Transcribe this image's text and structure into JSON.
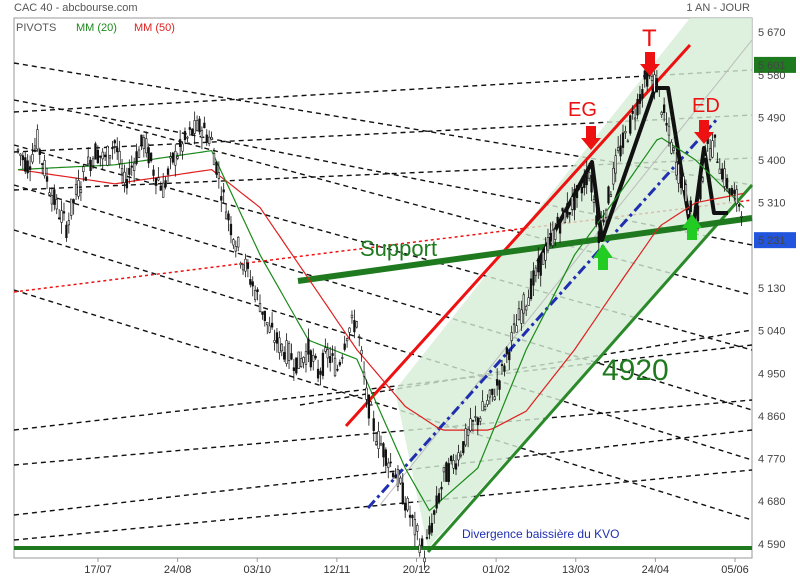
{
  "header": {
    "left": "CAC 40 - abcbourse.com",
    "right": "1 AN - JOUR"
  },
  "legend": {
    "pivots": "PIVOTS",
    "mm20": "MM (20)",
    "mm50": "MM (50)"
  },
  "colors": {
    "mm20": "#1a8a1a",
    "mm50": "#e02020",
    "support": "#1f7a1f",
    "channel_fill": "#d6ecd6",
    "resistance": "#ee1111",
    "dashdot": "#1f2fb0",
    "price_box_green": "#1e7a1e",
    "price_box_blue": "#2255dd"
  },
  "chart_data": {
    "type": "candlestick",
    "title": "CAC 40",
    "period": "1 AN - JOUR",
    "ylim": [
      4560,
      5700
    ],
    "yticks": [
      5670,
      5601,
      5580,
      5490,
      5400,
      5310,
      5231,
      5130,
      5040,
      4950,
      4860,
      4770,
      4680,
      4590
    ],
    "ytick_labels": [
      "5 670",
      "5 601",
      "5 580",
      "5 490",
      "5 400",
      "5 310",
      "5 231",
      "5 130",
      "5 040",
      "4 950",
      "4 860",
      "4 770",
      "4 680",
      "4 590"
    ],
    "highlighted_levels": [
      {
        "label": "5 601",
        "value": 5601,
        "style": "green-box"
      },
      {
        "label": "5 231",
        "value": 5231,
        "style": "blue-box"
      }
    ],
    "xtick_labels": [
      "17/07",
      "24/08",
      "03/10",
      "12/11",
      "20/12",
      "01/02",
      "13/03",
      "24/04",
      "05/06"
    ],
    "close_path": [
      [
        0,
        5420
      ],
      [
        4,
        5390
      ],
      [
        8,
        5440
      ],
      [
        12,
        5360
      ],
      [
        16,
        5300
      ],
      [
        20,
        5260
      ],
      [
        24,
        5330
      ],
      [
        28,
        5380
      ],
      [
        32,
        5420
      ],
      [
        36,
        5400
      ],
      [
        40,
        5440
      ],
      [
        44,
        5350
      ],
      [
        48,
        5400
      ],
      [
        52,
        5440
      ],
      [
        56,
        5380
      ],
      [
        60,
        5340
      ],
      [
        64,
        5400
      ],
      [
        68,
        5430
      ],
      [
        72,
        5460
      ],
      [
        76,
        5470
      ],
      [
        80,
        5440
      ],
      [
        84,
        5340
      ],
      [
        88,
        5260
      ],
      [
        92,
        5200
      ],
      [
        96,
        5150
      ],
      [
        100,
        5100
      ],
      [
        104,
        5040
      ],
      [
        108,
        5010
      ],
      [
        112,
        4990
      ],
      [
        116,
        4970
      ],
      [
        120,
        5000
      ],
      [
        124,
        4950
      ],
      [
        128,
        4990
      ],
      [
        132,
        4960
      ],
      [
        136,
        5040
      ],
      [
        140,
        5060
      ],
      [
        144,
        4900
      ],
      [
        148,
        4820
      ],
      [
        152,
        4780
      ],
      [
        156,
        4740
      ],
      [
        160,
        4680
      ],
      [
        164,
        4620
      ],
      [
        168,
        4570
      ],
      [
        172,
        4650
      ],
      [
        176,
        4730
      ],
      [
        180,
        4760
      ],
      [
        184,
        4800
      ],
      [
        188,
        4840
      ],
      [
        192,
        4870
      ],
      [
        196,
        4900
      ],
      [
        200,
        4950
      ],
      [
        204,
        5020
      ],
      [
        208,
        5080
      ],
      [
        212,
        5130
      ],
      [
        216,
        5180
      ],
      [
        220,
        5230
      ],
      [
        224,
        5270
      ],
      [
        228,
        5300
      ],
      [
        232,
        5330
      ],
      [
        236,
        5380
      ],
      [
        240,
        5250
      ],
      [
        244,
        5320
      ],
      [
        248,
        5410
      ],
      [
        252,
        5460
      ],
      [
        256,
        5520
      ],
      [
        260,
        5580
      ],
      [
        264,
        5560
      ],
      [
        268,
        5470
      ],
      [
        272,
        5390
      ],
      [
        276,
        5330
      ],
      [
        280,
        5250
      ],
      [
        284,
        5420
      ],
      [
        288,
        5430
      ],
      [
        292,
        5360
      ],
      [
        296,
        5320
      ],
      [
        300,
        5300
      ]
    ],
    "ma20_path": [
      [
        0,
        5380
      ],
      [
        40,
        5390
      ],
      [
        80,
        5420
      ],
      [
        100,
        5200
      ],
      [
        120,
        5020
      ],
      [
        140,
        4980
      ],
      [
        160,
        4750
      ],
      [
        170,
        4660
      ],
      [
        190,
        4750
      ],
      [
        210,
        5000
      ],
      [
        230,
        5200
      ],
      [
        250,
        5340
      ],
      [
        265,
        5450
      ],
      [
        280,
        5400
      ],
      [
        300,
        5300
      ]
    ],
    "ma50_path": [
      [
        0,
        5380
      ],
      [
        40,
        5350
      ],
      [
        80,
        5380
      ],
      [
        100,
        5300
      ],
      [
        120,
        5150
      ],
      [
        140,
        5000
      ],
      [
        160,
        4880
      ],
      [
        175,
        4830
      ],
      [
        195,
        4830
      ],
      [
        210,
        4870
      ],
      [
        230,
        5000
      ],
      [
        250,
        5150
      ],
      [
        265,
        5260
      ],
      [
        280,
        5310
      ],
      [
        300,
        5330
      ]
    ],
    "annotations": [
      {
        "text": "T",
        "type": "top-arrow",
        "color": "#ee1111"
      },
      {
        "text": "EG",
        "type": "shoulder-arrow",
        "color": "#ee1111"
      },
      {
        "text": "ED",
        "type": "shoulder-arrow",
        "color": "#ee1111"
      },
      {
        "text": "Support",
        "type": "label",
        "color": "#1f7a1f"
      },
      {
        "text": "4920",
        "type": "label",
        "color": "#1f7a1f"
      },
      {
        "text": "Divergence baissière du KVO",
        "type": "note",
        "color": "#1f2fb0"
      }
    ]
  }
}
